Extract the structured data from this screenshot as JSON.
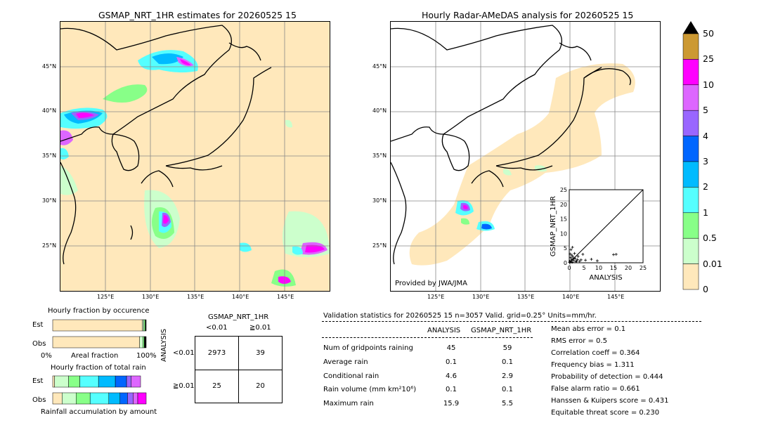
{
  "left_map": {
    "title": "GSMAP_NRT_1HR estimates for 20260525 15",
    "lat_labels": [
      "45°N",
      "40°N",
      "35°N",
      "30°N",
      "25°N"
    ],
    "lon_labels": [
      "125°E",
      "130°E",
      "135°E",
      "140°E",
      "145°E"
    ]
  },
  "right_map": {
    "title": "Hourly Radar-AMeDAS analysis for 20260525 15",
    "lat_labels": [
      "45°N",
      "40°N",
      "35°N",
      "30°N",
      "25°N"
    ],
    "lon_labels": [
      "125°E",
      "130°E",
      "135°E",
      "140°E",
      "145°E"
    ],
    "credit": "Provided by JWA/JMA"
  },
  "colorbar": {
    "labels": [
      "50",
      "25",
      "10",
      "5",
      "4",
      "3",
      "2",
      "1",
      "0.5",
      "0.01",
      "0"
    ],
    "colors": [
      "#cc9933",
      "#ff00ff",
      "#dd66ff",
      "#9966ff",
      "#0066ff",
      "#00bbff",
      "#55ffff",
      "#88ff88",
      "#ccffcc",
      "#ffe8bb"
    ]
  },
  "chart_data": [
    {
      "type": "scatter",
      "title": "",
      "xlabel": "ANALYSIS",
      "ylabel": "GSMAP_NRT_1HR",
      "xlim": [
        0,
        25
      ],
      "ylim": [
        0,
        25
      ],
      "x_ticks": [
        "0",
        "5",
        "10",
        "15",
        "20",
        "25"
      ],
      "y_ticks": [
        "0",
        "5",
        "10",
        "15",
        "20",
        "25"
      ],
      "points": [
        [
          0.2,
          0.5
        ],
        [
          0.5,
          0.3
        ],
        [
          0.8,
          1.2
        ],
        [
          1.0,
          0.2
        ],
        [
          1.2,
          2.0
        ],
        [
          0.3,
          3.0
        ],
        [
          1.5,
          0.8
        ],
        [
          2.0,
          1.5
        ],
        [
          0.6,
          4.5
        ],
        [
          2.5,
          0.6
        ],
        [
          3.0,
          2.2
        ],
        [
          1.8,
          3.2
        ],
        [
          4.0,
          1.0
        ],
        [
          0.4,
          1.8
        ],
        [
          2.2,
          0.4
        ],
        [
          3.5,
          0.5
        ],
        [
          0.9,
          2.6
        ],
        [
          1.1,
          5.3
        ],
        [
          5.5,
          0.9
        ],
        [
          7.5,
          1.2
        ],
        [
          9.5,
          0.7
        ],
        [
          15.0,
          2.8
        ],
        [
          15.9,
          2.9
        ],
        [
          4.6,
          2.9
        ],
        [
          0.1,
          0.1
        ],
        [
          0.7,
          0.7
        ],
        [
          1.4,
          1.3
        ],
        [
          2.8,
          1.1
        ]
      ]
    },
    {
      "type": "bar",
      "title": "Hourly fraction by occurence",
      "categories": [
        "Est",
        "Obs"
      ],
      "xlabel": "Areal fraction",
      "x_ticks": [
        "0%",
        "100%"
      ],
      "series": [
        {
          "values": [
            0.96,
            0.93
          ]
        },
        {
          "values": [
            0.015,
            0.035
          ]
        },
        {
          "values": [
            0.015,
            0.015
          ]
        },
        {
          "values": [
            0.01,
            0.02
          ]
        }
      ],
      "series_colors": [
        "#ffe8bb",
        "#ccffcc",
        "#88ff88",
        "#000000"
      ]
    },
    {
      "type": "bar",
      "title": "Hourly fraction of total rain",
      "categories": [
        "Est",
        "Obs"
      ],
      "xlabel": "Rainfall accumulation by amount",
      "segments": {
        "Est": [
          0.02,
          0.15,
          0.12,
          0.2,
          0.18,
          0.12,
          0.05,
          0.1
        ],
        "Obs": [
          0.1,
          0.15,
          0.15,
          0.2,
          0.12,
          0.08,
          0.06,
          0.05,
          0.09
        ]
      },
      "segment_colors": [
        "#ffe8bb",
        "#ccffcc",
        "#88ff88",
        "#55ffff",
        "#00bbff",
        "#0066ff",
        "#9966ff",
        "#dd66ff",
        "#ff00ff"
      ]
    }
  ],
  "contingency": {
    "title": "GSMAP_NRT_1HR",
    "col_headers": [
      "<0.01",
      "≧0.01"
    ],
    "row_headers": [
      "<0.01",
      "≧0.01"
    ],
    "side_label": "ANALYSIS",
    "cells": [
      [
        "2973",
        "39"
      ],
      [
        "25",
        "20"
      ]
    ]
  },
  "validation": {
    "header": "Validation statistics for 20260525 15  n=3057 Valid. grid=0.25° Units=mm/hr.",
    "col1": "ANALYSIS",
    "col2": "GSMAP_NRT_1HR",
    "rows": [
      {
        "label": "Num of gridpoints raining",
        "a": "45",
        "b": "59"
      },
      {
        "label": "Average rain",
        "a": "0.1",
        "b": "0.1"
      },
      {
        "label": "Conditional rain",
        "a": "4.6",
        "b": "2.9"
      },
      {
        "label": "Rain volume (mm km²10⁶)",
        "a": "0.1",
        "b": "0.1"
      },
      {
        "label": "Maximum rain",
        "a": "15.9",
        "b": "5.5"
      }
    ],
    "scores": [
      "Mean abs error =    0.1",
      "RMS error =    0.5",
      "Correlation coeff =  0.364",
      "Frequency bias =  1.311",
      "Probability of detection =  0.444",
      "False alarm ratio =  0.661",
      "Hanssen & Kuipers score =  0.431",
      "Equitable threat score =  0.230"
    ]
  }
}
